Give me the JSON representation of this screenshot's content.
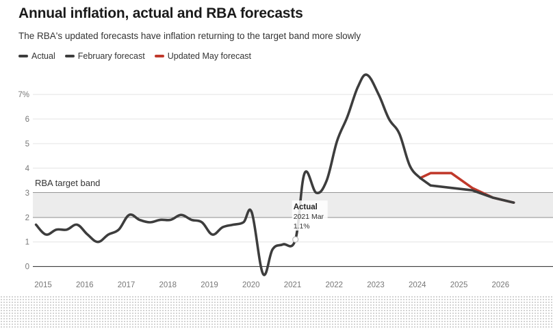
{
  "chart_data": {
    "type": "line",
    "title": "Annual inflation, actual and RBA forecasts",
    "subtitle": "The RBA's updated forecasts have inflation returning to the target band more slowly",
    "ylim": [
      -0.4,
      8.2
    ],
    "xlim": [
      2015,
      2026.9
    ],
    "y_ticks": [
      {
        "value": 7,
        "label": "7%"
      },
      {
        "value": 6,
        "label": "6"
      },
      {
        "value": 5,
        "label": "5"
      },
      {
        "value": 4,
        "label": "4"
      },
      {
        "value": 3,
        "label": "3"
      },
      {
        "value": 2,
        "label": "2"
      },
      {
        "value": 1,
        "label": "1"
      },
      {
        "value": 0,
        "label": "0"
      }
    ],
    "x_ticks": [
      {
        "value": 2015,
        "label": "2015"
      },
      {
        "value": 2016,
        "label": "2016"
      },
      {
        "value": 2017,
        "label": "2017"
      },
      {
        "value": 2018,
        "label": "2018"
      },
      {
        "value": 2019,
        "label": "2019"
      },
      {
        "value": 2020,
        "label": "2020"
      },
      {
        "value": 2021,
        "label": "2021"
      },
      {
        "value": 2022,
        "label": "2022"
      },
      {
        "value": 2023,
        "label": "2023"
      },
      {
        "value": 2024,
        "label": "2024"
      },
      {
        "value": 2025,
        "label": "2025"
      },
      {
        "value": 2026,
        "label": "2026"
      }
    ],
    "target_band": {
      "low": 2,
      "high": 3,
      "label": "RBA target band"
    },
    "legend": "top-left",
    "series": [
      {
        "name": "Actual",
        "color": "#3d3d3d",
        "points": [
          [
            2014.96,
            1.7
          ],
          [
            2015.2,
            1.3
          ],
          [
            2015.45,
            1.5
          ],
          [
            2015.7,
            1.5
          ],
          [
            2015.95,
            1.7
          ],
          [
            2016.2,
            1.3
          ],
          [
            2016.45,
            1.0
          ],
          [
            2016.7,
            1.3
          ],
          [
            2016.95,
            1.5
          ],
          [
            2017.2,
            2.1
          ],
          [
            2017.45,
            1.9
          ],
          [
            2017.7,
            1.8
          ],
          [
            2017.95,
            1.9
          ],
          [
            2018.2,
            1.9
          ],
          [
            2018.45,
            2.1
          ],
          [
            2018.7,
            1.9
          ],
          [
            2018.95,
            1.8
          ],
          [
            2019.2,
            1.3
          ],
          [
            2019.45,
            1.6
          ],
          [
            2019.7,
            1.7
          ],
          [
            2019.95,
            1.8
          ],
          [
            2020.15,
            2.2
          ],
          [
            2020.42,
            -0.3
          ],
          [
            2020.65,
            0.7
          ],
          [
            2020.9,
            0.9
          ],
          [
            2021.2,
            1.1
          ],
          [
            2021.42,
            3.8
          ],
          [
            2021.7,
            3.0
          ],
          [
            2021.95,
            3.5
          ],
          [
            2022.2,
            5.1
          ],
          [
            2022.45,
            6.1
          ],
          [
            2022.7,
            7.3
          ],
          [
            2022.92,
            7.8
          ],
          [
            2023.2,
            7.0
          ],
          [
            2023.45,
            6.0
          ],
          [
            2023.7,
            5.4
          ],
          [
            2023.95,
            4.1
          ],
          [
            2024.2,
            3.6
          ]
        ]
      },
      {
        "name": "February forecast",
        "color": "#3d3d3d",
        "points": [
          [
            2024.2,
            3.6
          ],
          [
            2024.45,
            3.3
          ],
          [
            2024.95,
            3.2
          ],
          [
            2025.45,
            3.1
          ],
          [
            2025.95,
            2.8
          ],
          [
            2026.45,
            2.6
          ]
        ]
      },
      {
        "name": "Updated May forecast",
        "color": "#c0392b",
        "points": [
          [
            2024.2,
            3.6
          ],
          [
            2024.45,
            3.8
          ],
          [
            2024.95,
            3.8
          ],
          [
            2025.45,
            3.2
          ],
          [
            2025.95,
            2.8
          ],
          [
            2026.45,
            2.6
          ]
        ]
      }
    ],
    "annotation": {
      "series": "Actual",
      "x": 2021.2,
      "y": 1.1,
      "title": "Actual",
      "period": "2021 Mar",
      "value": "1.1%"
    }
  }
}
